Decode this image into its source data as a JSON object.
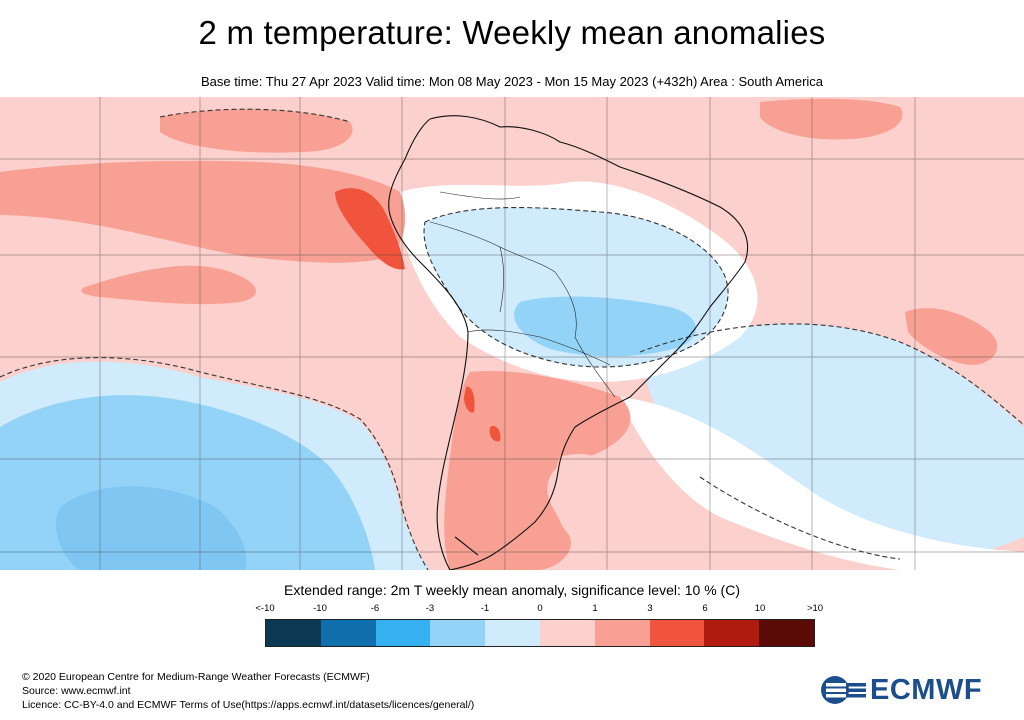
{
  "title": "2 m temperature: Weekly mean anomalies",
  "subtitle": "Base time: Thu 27 Apr 2023 Valid time: Mon 08 May 2023 - Mon 15 May 2023 (+432h) Area : South America",
  "legend": {
    "title": "Extended range: 2m T weekly mean anomaly, significance level: 10 % (C)",
    "ticks": [
      "<-10",
      "-10",
      "-6",
      "-3",
      "-1",
      "0",
      "1",
      "3",
      "6",
      "10",
      ">10"
    ],
    "colors": [
      "#0b3954",
      "#0f6fad",
      "#35b0f0",
      "#93d3f7",
      "#d0ebfb",
      "#fcd0cc",
      "#f7a093",
      "#f0543c",
      "#b01a0f",
      "#5a0b06"
    ]
  },
  "footer": {
    "line1": "© 2020 European Centre for Medium-Range Weather Forecasts (ECMWF)",
    "line2": "Source: www.ecmwf.int",
    "line3": "Licence: CC-BY-4.0 and ECMWF Terms of Use(https://apps.ecmwf.int/datasets/licences/general/)"
  },
  "logo": {
    "text": "ECMWF",
    "color": "#1c4e8c"
  }
}
